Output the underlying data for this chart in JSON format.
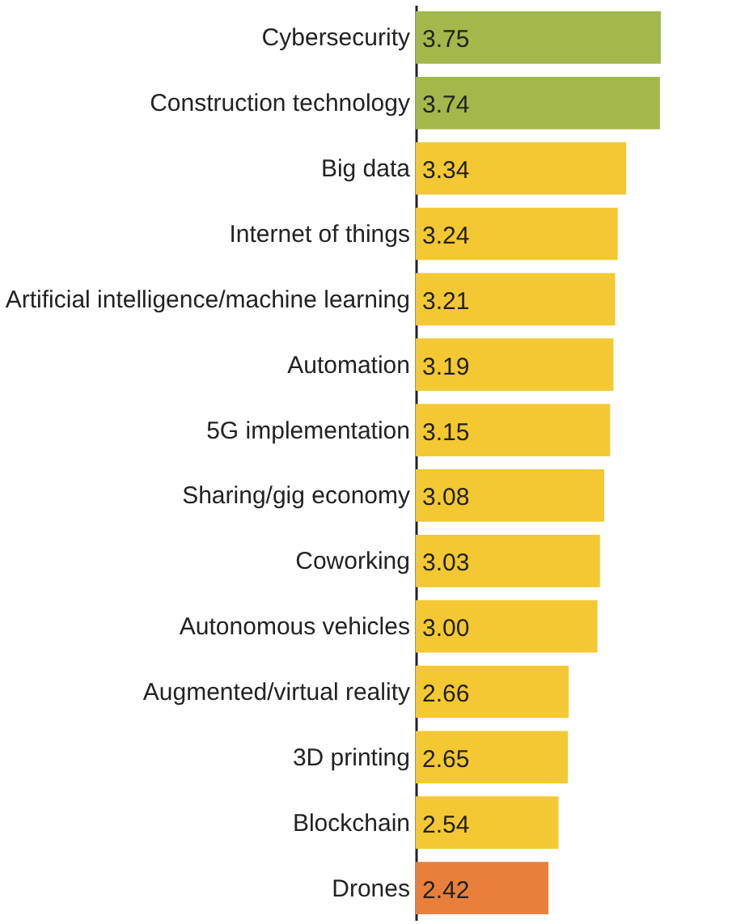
{
  "chart_data": {
    "type": "bar",
    "orientation": "horizontal",
    "categories": [
      "Cybersecurity",
      "Construction technology",
      "Big data",
      "Internet of things",
      "Artificial intelligence/machine learning",
      "Automation",
      "5G implementation",
      "Sharing/gig economy",
      "Coworking",
      "Autonomous vehicles",
      "Augmented/virtual reality",
      "3D printing",
      "Blockchain",
      "Drones"
    ],
    "values": [
      3.75,
      3.74,
      3.34,
      3.24,
      3.21,
      3.19,
      3.15,
      3.08,
      3.03,
      3.0,
      2.66,
      2.65,
      2.54,
      2.42
    ],
    "value_labels": [
      "3.75",
      "3.74",
      "3.34",
      "3.24",
      "3.21",
      "3.19",
      "3.15",
      "3.08",
      "3.03",
      "3.00",
      "2.66",
      "2.65",
      "2.54",
      "2.42"
    ],
    "colors": [
      "#a3b84b",
      "#a3b84b",
      "#f4c832",
      "#f4c832",
      "#f4c832",
      "#f4c832",
      "#f4c832",
      "#f4c832",
      "#f4c832",
      "#f4c832",
      "#f4c832",
      "#f4c832",
      "#f4c832",
      "#e8803b"
    ],
    "xlim": [
      0.85,
      3.76
    ]
  }
}
